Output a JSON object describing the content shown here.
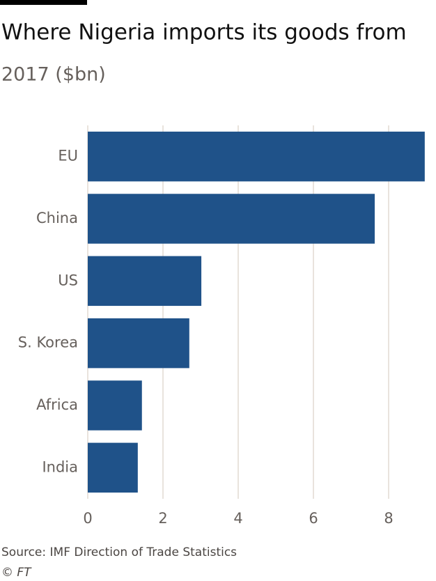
{
  "chart_data": {
    "type": "barh",
    "title": "Where Nigeria imports its goods from",
    "subtitle": "2017 ($bn)",
    "categories": [
      "EU",
      "China",
      "US",
      "S. Korea",
      "Africa",
      "India"
    ],
    "values": [
      8.96,
      7.63,
      3.02,
      2.7,
      1.44,
      1.33
    ],
    "color": "#1f5289",
    "xlim": [
      0,
      9
    ],
    "xticks": [
      0,
      2,
      4,
      6,
      8
    ],
    "grid": true,
    "source": "Source: IMF Direction of Trade Statistics",
    "credit": "© FT"
  }
}
